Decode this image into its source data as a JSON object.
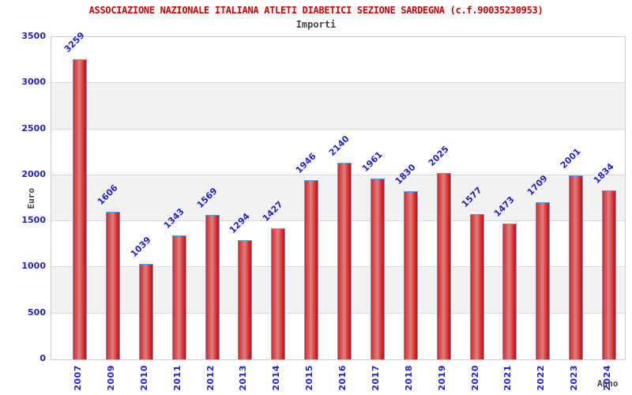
{
  "chart": {
    "title": "ASSOCIAZIONE NAZIONALE ITALIANA ATLETI DIABETICI SEZIONE SARDEGNA (c.f.90035230953)",
    "subtitle": "Importi",
    "ylabel": "Euro",
    "xlabel": "Anno"
  },
  "chart_data": {
    "type": "bar",
    "title": "ASSOCIAZIONE NAZIONALE ITALIANA ATLETI DIABETICI SEZIONE SARDEGNA (c.f.90035230953)",
    "subtitle": "Importi",
    "xlabel": "Anno",
    "ylabel": "Euro",
    "categories": [
      "2007",
      "2009",
      "2010",
      "2011",
      "2012",
      "2013",
      "2014",
      "2015",
      "2016",
      "2017",
      "2018",
      "2019",
      "2020",
      "2021",
      "2022",
      "2023",
      "2024"
    ],
    "values": [
      3259,
      1606,
      1039,
      1343,
      1569,
      1294,
      1427,
      1946,
      2140,
      1961,
      1830,
      2025,
      1577,
      1473,
      1709,
      2001,
      1834
    ],
    "ylim": [
      0,
      3500
    ],
    "ytick_step": 500,
    "grid": true,
    "bands_alternating": true,
    "legend": "none",
    "colors": {
      "title": "#cc0000",
      "subtitle": "#444444",
      "axis_title": "#444444",
      "tick_label": "#2222cc",
      "value_label": "#2222cc",
      "bar_edge": "#e82222",
      "bar_mid": "#d28585",
      "bar_dark": "#c01515",
      "bar_border": "#55a0e0",
      "band": "#f2f2f2",
      "gridline": "#d9d9d9",
      "plot_border": "#cccccc"
    }
  }
}
